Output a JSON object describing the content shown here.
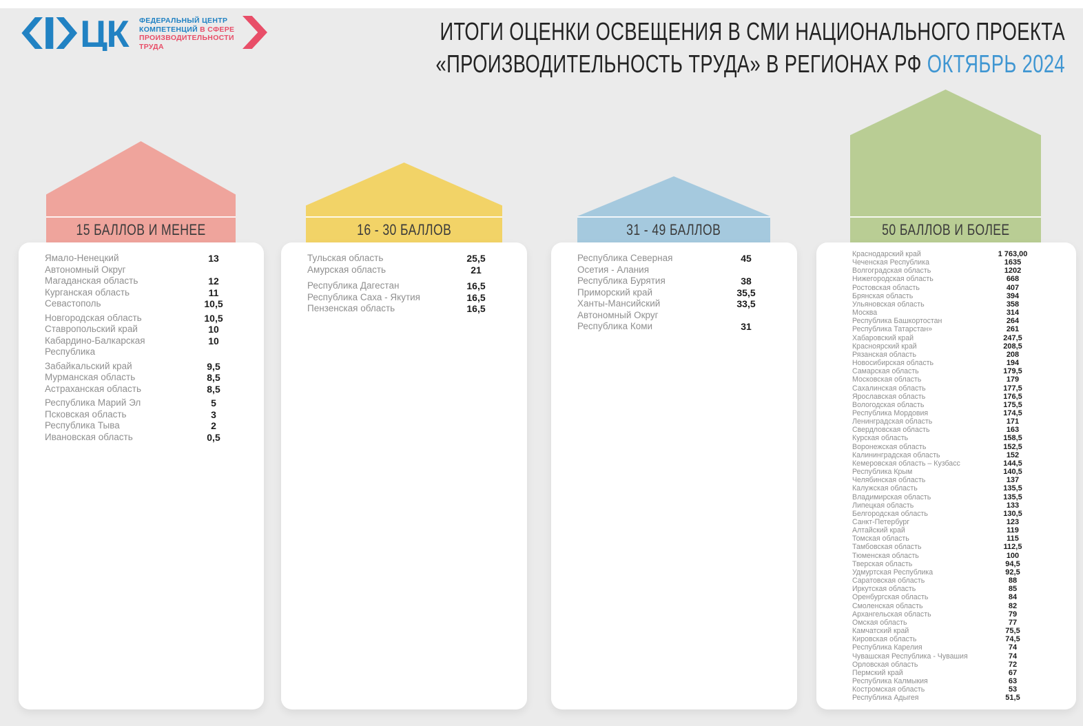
{
  "colors": {
    "background": "#ebebeb",
    "card": "#ffffff",
    "accent_blue": "#3f96d2",
    "title_text": "#232323",
    "region_name": "#8f8f8f",
    "region_value": "#1b1b1b",
    "banner_text": "#3b3b3b",
    "logo_blue": "#2182c3",
    "logo_red": "#e84e68"
  },
  "logo": {
    "mark": "ФЦК",
    "line1": "ФЕДЕРАЛЬНЫЙ ЦЕНТР",
    "line2_blue": "КОМПЕТЕНЦИЙ",
    "line2_red": "В СФЕРЕ",
    "line3": "ПРОИЗВОДИТЕЛЬНОСТИ",
    "line4": "ТРУДА"
  },
  "title": {
    "line1": "ИТОГИ ОЦЕНКИ ОСВЕЩЕНИЯ В СМИ НАЦИОНАЛЬНОГО ПРОЕКТА",
    "line2": "«ПРОИЗВОДИТЕЛЬНОСТЬ ТРУДА» В РЕГИОНАХ РФ",
    "period": "ОКТЯБРЬ 2024"
  },
  "chart_data": {
    "type": "table",
    "title": "ИТОГИ ОЦЕНКИ ОСВЕЩЕНИЯ В СМИ НАЦИОНАЛЬНОГО ПРОЕКТА «ПРОИЗВОДИТЕЛЬНОСТЬ ТРУДА» В РЕГИОНАХ РФ",
    "subtitle": "ОКТЯБРЬ 2024",
    "legend_position": "none",
    "groups": [
      {
        "label": "15 БАЛЛОВ И МЕНЕЕ",
        "color": "#efa49c",
        "items": [
          {
            "name": "Ямало-Ненецкий Автономный Округ",
            "value": "13"
          },
          {
            "name": "Магаданская область",
            "value": "12"
          },
          {
            "name": "Курганская область",
            "value": "11"
          },
          {
            "name": "Севастополь",
            "value": "10,5"
          },
          {
            "name": "Новгородская область",
            "value": "10,5"
          },
          {
            "name": "Ставропольский край",
            "value": "10"
          },
          {
            "name": "Кабардино-Балкарская Республика",
            "value": "10"
          },
          {
            "name": "Забайкальский край",
            "value": "9,5"
          },
          {
            "name": "Мурманская область",
            "value": "8,5"
          },
          {
            "name": "Астраханская область",
            "value": "8,5"
          },
          {
            "name": "Республика Марий Эл",
            "value": "5"
          },
          {
            "name": "Псковская область",
            "value": "3"
          },
          {
            "name": "Республика Тыва",
            "value": "2"
          },
          {
            "name": "Ивановская область",
            "value": "0,5"
          }
        ]
      },
      {
        "label": "16 - 30 БАЛЛОВ",
        "color": "#f2d367",
        "items": [
          {
            "name": "Тульская область",
            "value": "25,5"
          },
          {
            "name": "Амурская область",
            "value": "21"
          },
          {
            "name": "Республика Дагестан",
            "value": "16,5"
          },
          {
            "name": "Республика Саха - Якутия",
            "value": "16,5"
          },
          {
            "name": "Пензенская область",
            "value": "16,5"
          }
        ]
      },
      {
        "label": "31 - 49 БАЛЛОВ",
        "color": "#a5c9de",
        "items": [
          {
            "name": "Республика Северная Осетия - Алания",
            "value": "45"
          },
          {
            "name": "Республика Бурятия",
            "value": "38"
          },
          {
            "name": "Приморский край",
            "value": "35,5"
          },
          {
            "name": "Ханты-Мансийский Автономный Округ",
            "value": "33,5"
          },
          {
            "name": "Республика Коми",
            "value": "31"
          }
        ]
      },
      {
        "label": "50 БАЛЛОВ И БОЛЕЕ",
        "color": "#b9cd94",
        "items": [
          {
            "name": "Краснодарский край",
            "value": "1 763,00"
          },
          {
            "name": "Чеченская Республика",
            "value": "1635"
          },
          {
            "name": "Волгоградская область",
            "value": "1202"
          },
          {
            "name": "Нижегородская область",
            "value": "668"
          },
          {
            "name": "Ростовская область",
            "value": "407"
          },
          {
            "name": "Брянская область",
            "value": "394"
          },
          {
            "name": "Ульяновская область",
            "value": "358"
          },
          {
            "name": "Москва",
            "value": "314"
          },
          {
            "name": "Республика Башкортостан",
            "value": "264"
          },
          {
            "name": "Республика Татарстан»",
            "value": "261"
          },
          {
            "name": "Хабаровский край",
            "value": "247,5"
          },
          {
            "name": "Красноярский край",
            "value": "208,5"
          },
          {
            "name": "Рязанская область",
            "value": "208"
          },
          {
            "name": "Новосибирская область",
            "value": "194"
          },
          {
            "name": "Самарская область",
            "value": "179,5"
          },
          {
            "name": "Московская область",
            "value": "179"
          },
          {
            "name": "Сахалинская область",
            "value": "177,5"
          },
          {
            "name": "Ярославская область",
            "value": "176,5"
          },
          {
            "name": "Вологодская область",
            "value": "175,5"
          },
          {
            "name": "Республика Мордовия",
            "value": "174,5"
          },
          {
            "name": "Ленинградская область",
            "value": "171"
          },
          {
            "name": "Свердловская область",
            "value": "163"
          },
          {
            "name": "Курская область",
            "value": "158,5"
          },
          {
            "name": "Воронежская область",
            "value": "152,5"
          },
          {
            "name": "Калининградская область",
            "value": "152"
          },
          {
            "name": "Кемеровская область – Кузбасс",
            "value": "144,5"
          },
          {
            "name": "Республика Крым",
            "value": "140,5"
          },
          {
            "name": "Челябинская область",
            "value": "137"
          },
          {
            "name": "Калужская область",
            "value": "135,5"
          },
          {
            "name": "Владимирская область",
            "value": "135,5"
          },
          {
            "name": "Липецкая область",
            "value": "133"
          },
          {
            "name": "Белгородская область",
            "value": "130,5"
          },
          {
            "name": "Санкт-Петербург",
            "value": "123"
          },
          {
            "name": "Алтайский край",
            "value": "119"
          },
          {
            "name": "Томская область",
            "value": "115"
          },
          {
            "name": "Тамбовская область",
            "value": "112,5"
          },
          {
            "name": "Тюменская область",
            "value": "100"
          },
          {
            "name": "Тверская область",
            "value": "94,5"
          },
          {
            "name": "Удмуртская Республика",
            "value": "92,5"
          },
          {
            "name": "Саратовская область",
            "value": "88"
          },
          {
            "name": "Иркутская область",
            "value": "85"
          },
          {
            "name": "Оренбургская область",
            "value": "84"
          },
          {
            "name": "Смоленская область",
            "value": "82"
          },
          {
            "name": "Архангельская область",
            "value": "79"
          },
          {
            "name": "Омская область",
            "value": "77"
          },
          {
            "name": "Камчатский край",
            "value": "75,5"
          },
          {
            "name": "Кировская область",
            "value": "74,5"
          },
          {
            "name": "Республика Карелия",
            "value": "74"
          },
          {
            "name": "Чувашская Республика - Чувашия",
            "value": "74"
          },
          {
            "name": "Орловская область",
            "value": "72"
          },
          {
            "name": "Пермский край",
            "value": "67"
          },
          {
            "name": "Республика Калмыкия",
            "value": "63"
          },
          {
            "name": "Костромская область",
            "value": "53"
          },
          {
            "name": "Республика Адыгея",
            "value": "51,5"
          }
        ]
      }
    ]
  }
}
